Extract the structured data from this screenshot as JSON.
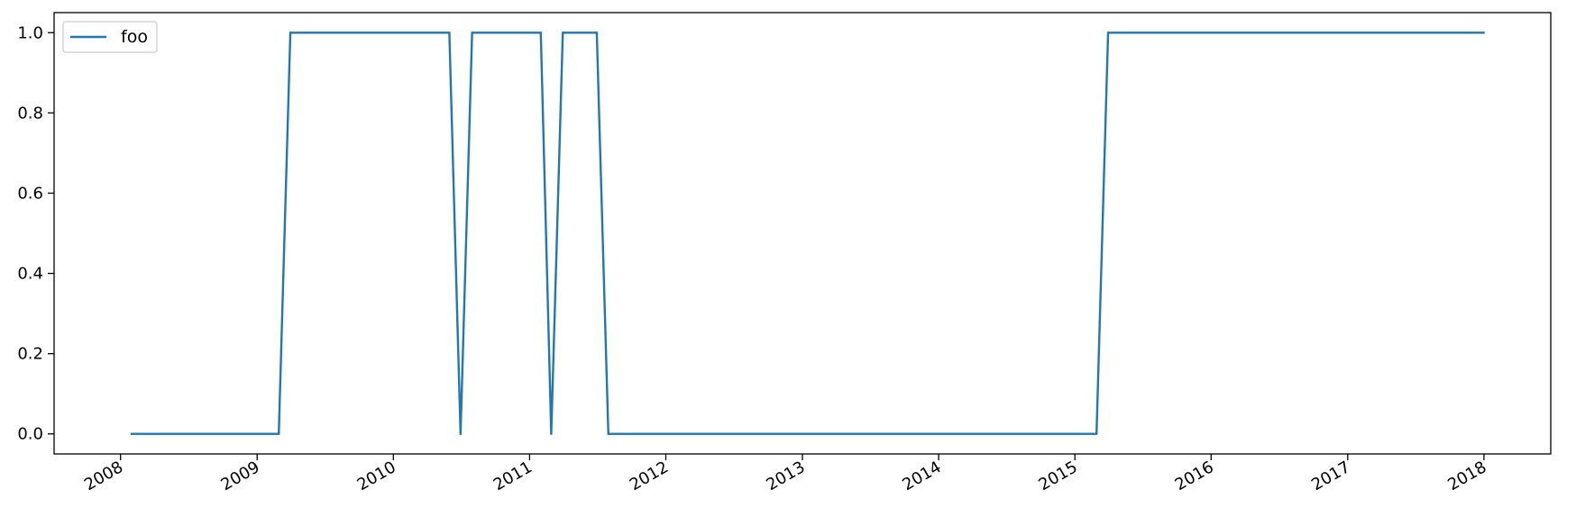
{
  "chart_data": {
    "type": "line",
    "title": "",
    "xlabel": "",
    "ylabel": "",
    "x_axis_type": "date",
    "xlim": [
      "2007-07-07",
      "2018-06-29"
    ],
    "ylim": [
      -0.05,
      1.05
    ],
    "grid": false,
    "legend": {
      "location": "upper left",
      "entries": [
        "foo"
      ]
    },
    "x_ticks": [
      {
        "date": "2008-01-01",
        "label": "2008"
      },
      {
        "date": "2009-01-01",
        "label": "2009"
      },
      {
        "date": "2010-01-01",
        "label": "2010"
      },
      {
        "date": "2011-01-01",
        "label": "2011"
      },
      {
        "date": "2012-01-01",
        "label": "2012"
      },
      {
        "date": "2013-01-01",
        "label": "2013"
      },
      {
        "date": "2014-01-01",
        "label": "2014"
      },
      {
        "date": "2015-01-01",
        "label": "2015"
      },
      {
        "date": "2016-01-01",
        "label": "2016"
      },
      {
        "date": "2017-01-01",
        "label": "2017"
      },
      {
        "date": "2018-01-01",
        "label": "2018"
      }
    ],
    "y_ticks": [
      {
        "value": 0.0,
        "label": "0.0"
      },
      {
        "value": 0.2,
        "label": "0.2"
      },
      {
        "value": 0.4,
        "label": "0.4"
      },
      {
        "value": 0.6,
        "label": "0.6"
      },
      {
        "value": 0.8,
        "label": "0.8"
      },
      {
        "value": 1.0,
        "label": "1.0"
      }
    ],
    "series": [
      {
        "name": "foo",
        "color": "#1f77b4",
        "points": [
          {
            "x": "2008-01-31",
            "y": 0
          },
          {
            "x": "2009-02-28",
            "y": 0
          },
          {
            "x": "2009-03-31",
            "y": 1
          },
          {
            "x": "2010-05-31",
            "y": 1
          },
          {
            "x": "2010-06-30",
            "y": 0
          },
          {
            "x": "2010-07-31",
            "y": 1
          },
          {
            "x": "2011-01-31",
            "y": 1
          },
          {
            "x": "2011-02-28",
            "y": 0
          },
          {
            "x": "2011-03-31",
            "y": 1
          },
          {
            "x": "2011-06-30",
            "y": 1
          },
          {
            "x": "2011-07-31",
            "y": 0
          },
          {
            "x": "2015-02-28",
            "y": 0
          },
          {
            "x": "2015-03-31",
            "y": 1
          },
          {
            "x": "2017-12-31",
            "y": 1
          }
        ]
      }
    ]
  }
}
